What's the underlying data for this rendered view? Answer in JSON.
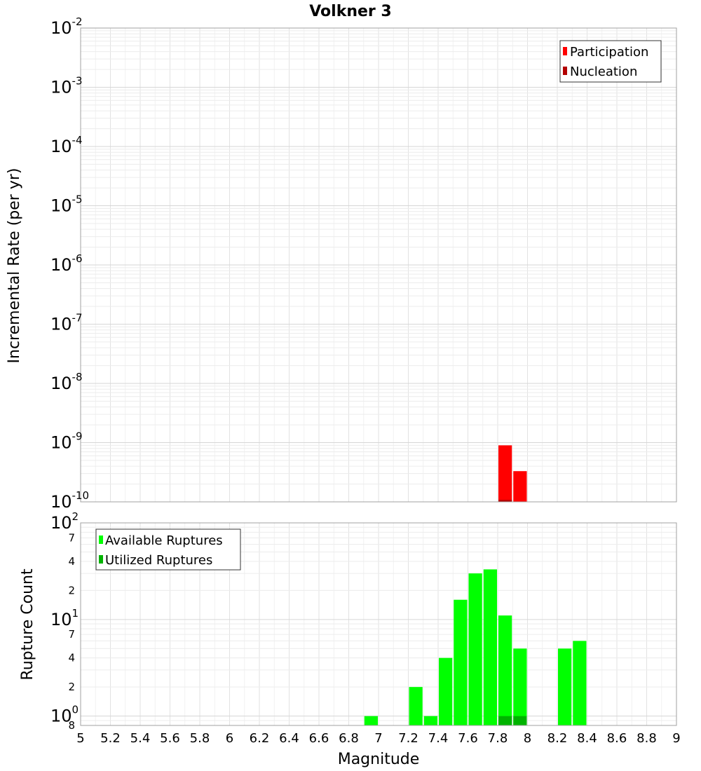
{
  "chart_data": [
    {
      "type": "bar",
      "title": "Volkner 3",
      "xlabel": "",
      "ylabel": "Incremental Rate (per yr)",
      "yscale": "log",
      "ylim": [
        1e-10,
        0.01
      ],
      "xlim": [
        5,
        9
      ],
      "bar_width": 0.1,
      "grid": true,
      "legend_position": "top-right",
      "y_tick_exponents": [
        "-10",
        "-9",
        "-8",
        "-7",
        "-6",
        "-5",
        "-4",
        "-3",
        "-2"
      ],
      "series": [
        {
          "name": "Participation",
          "color": "#ff0000",
          "x": [
            7.85,
            7.95
          ],
          "values": [
            9e-10,
            3.3e-10
          ]
        },
        {
          "name": "Nucleation",
          "color": "#b30000",
          "x": [
            7.85
          ],
          "values": [
            1.08e-10
          ]
        }
      ]
    },
    {
      "type": "bar",
      "title": "",
      "xlabel": "Magnitude",
      "ylabel": "Rupture Count",
      "yscale": "log",
      "ylim": [
        0.8,
        100
      ],
      "xlim": [
        5,
        9
      ],
      "bar_width": 0.1,
      "grid": true,
      "legend_position": "top-left",
      "x_tick_labels": [
        "5",
        "5.2",
        "5.4",
        "5.6",
        "5.8",
        "6",
        "6.2",
        "6.4",
        "6.6",
        "6.8",
        "7",
        "7.2",
        "7.4",
        "7.6",
        "7.8",
        "8",
        "8.2",
        "8.4",
        "8.6",
        "8.8",
        "9"
      ],
      "y_tick_exponents": [
        "0",
        "1",
        "2"
      ],
      "y_minor_tick_labels": [
        {
          "value": 0.8,
          "label": "8"
        },
        {
          "value": 2,
          "label": "2"
        },
        {
          "value": 4,
          "label": "4"
        },
        {
          "value": 7,
          "label": "7"
        },
        {
          "value": 20,
          "label": "2"
        },
        {
          "value": 40,
          "label": "4"
        },
        {
          "value": 70,
          "label": "7"
        }
      ],
      "series": [
        {
          "name": "Available Ruptures",
          "color": "#00ff00",
          "x": [
            6.95,
            7.25,
            7.35,
            7.45,
            7.55,
            7.65,
            7.75,
            7.85,
            7.95,
            8.25,
            8.35
          ],
          "values": [
            1,
            2,
            1,
            4,
            16,
            30,
            33,
            11,
            5,
            5,
            6
          ]
        },
        {
          "name": "Utilized Ruptures",
          "color": "#00b300",
          "x": [
            7.85,
            7.95
          ],
          "values": [
            1,
            1
          ]
        }
      ]
    }
  ]
}
